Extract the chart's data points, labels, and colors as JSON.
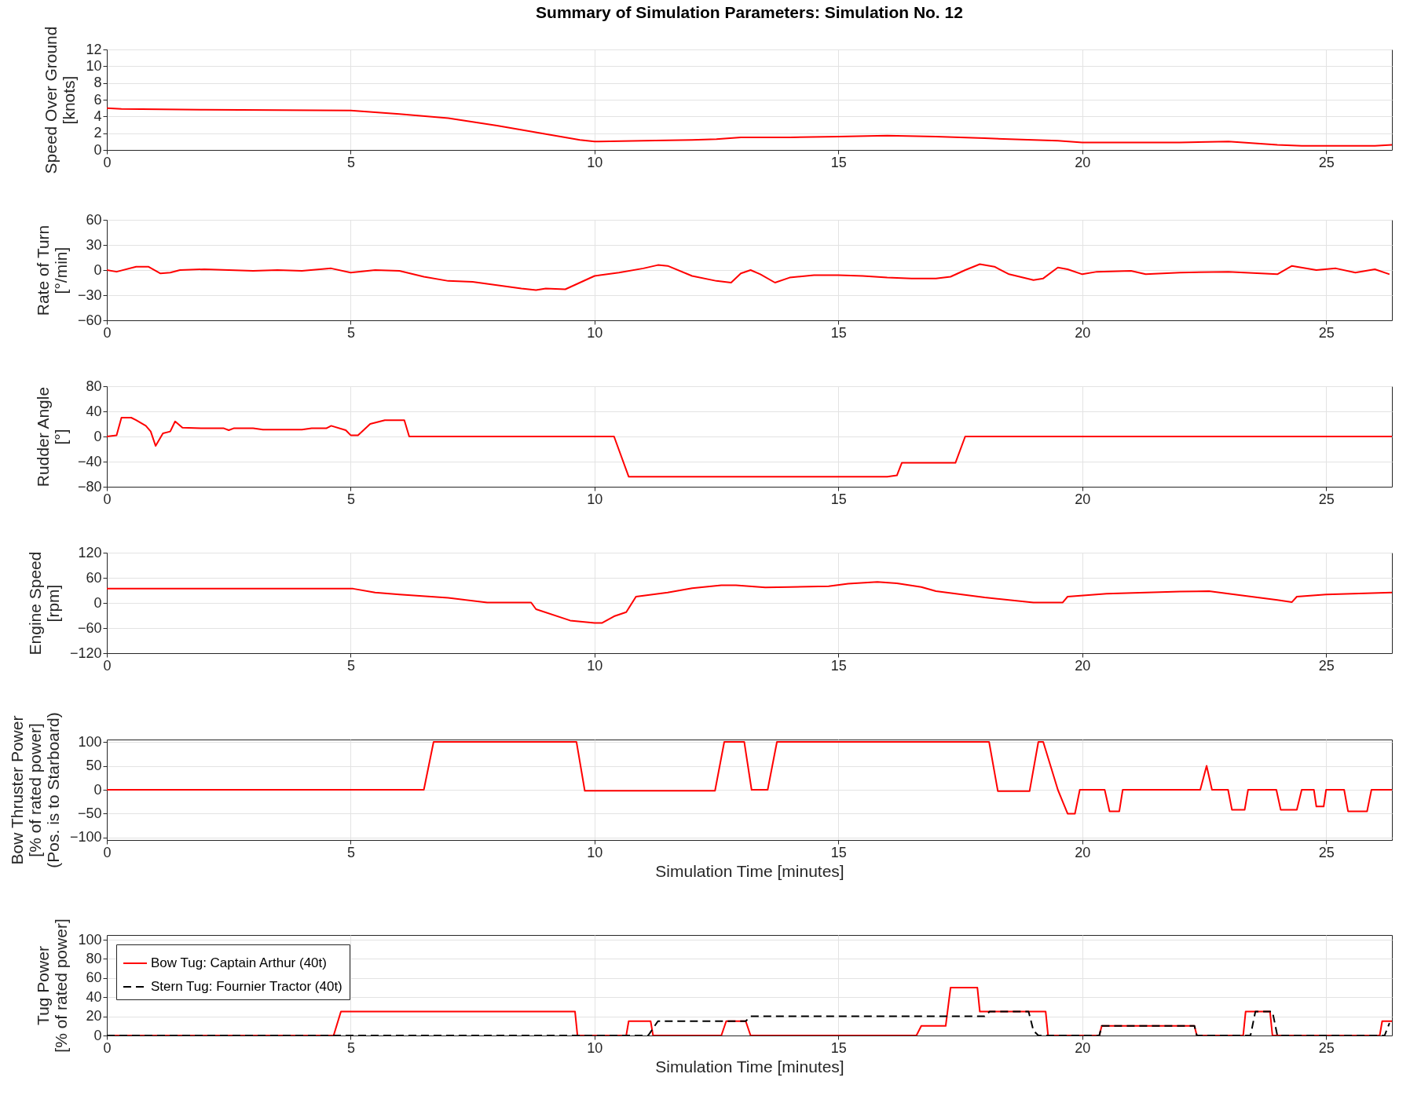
{
  "chart_data": [
    {
      "type": "line",
      "title": "Summary of Simulation Parameters: Simulation No. 12",
      "ylabel": "Speed Over Ground\n[knots]",
      "xlim": [
        0,
        26.35
      ],
      "xticks": [
        0,
        5,
        10,
        15,
        20,
        25
      ],
      "ylim": [
        0,
        12
      ],
      "yticks": [
        0,
        2,
        4,
        6,
        8,
        10,
        12
      ],
      "grid": true,
      "series": [
        {
          "color": "#ff0000",
          "x": [
            0,
            0.3,
            2,
            5,
            6,
            7,
            8,
            9,
            9.7,
            10,
            11,
            12,
            12.5,
            13,
            14,
            15,
            16,
            17,
            18,
            19,
            19.5,
            20,
            22,
            23,
            24,
            24.5,
            26,
            26.35
          ],
          "values": [
            5,
            4.9,
            4.8,
            4.7,
            4.3,
            3.8,
            2.9,
            1.9,
            1.2,
            1.0,
            1.1,
            1.2,
            1.3,
            1.5,
            1.5,
            1.6,
            1.7,
            1.6,
            1.4,
            1.2,
            1.1,
            0.9,
            0.9,
            1.0,
            0.6,
            0.5,
            0.5,
            0.6
          ]
        }
      ]
    },
    {
      "type": "line",
      "ylabel": "Rate of Turn\n[°/min]",
      "xlim": [
        0,
        26.35
      ],
      "xticks": [
        0,
        5,
        10,
        15,
        20,
        25
      ],
      "ylim": [
        -60,
        60
      ],
      "yticks": [
        -60,
        -30,
        0,
        30,
        60
      ],
      "grid": true,
      "series": [
        {
          "color": "#ff0000",
          "x": [
            0,
            0.2,
            0.6,
            0.85,
            1.1,
            1.3,
            1.5,
            2,
            3,
            3.5,
            4,
            4.6,
            5,
            5.5,
            6,
            6.5,
            7,
            7.5,
            8,
            8.5,
            8.8,
            9,
            9.4,
            10,
            10.5,
            11,
            11.3,
            11.5,
            12,
            12.5,
            12.8,
            13,
            13.2,
            13.4,
            13.7,
            14,
            14.5,
            15,
            15.5,
            16,
            16.5,
            17,
            17.3,
            17.6,
            17.9,
            18.2,
            18.5,
            19,
            19.2,
            19.5,
            19.7,
            20,
            20.3,
            21,
            21.3,
            22,
            23,
            24,
            24.3,
            24.8,
            25.2,
            25.6,
            26,
            26.3
          ],
          "values": [
            0,
            -2,
            4,
            4,
            -4,
            -3,
            0,
            1,
            -1,
            0,
            -1,
            2,
            -3,
            0,
            -1,
            -8,
            -13,
            -14,
            -18,
            -22,
            -24,
            -22,
            -23,
            -7,
            -3,
            2,
            6,
            5,
            -7,
            -13,
            -15,
            -4,
            0,
            -5,
            -15,
            -9,
            -6,
            -6,
            -7,
            -9,
            -10,
            -10,
            -8,
            0,
            7,
            4,
            -5,
            -12,
            -10,
            3,
            1,
            -5,
            -2,
            -1,
            -5,
            -3,
            -2,
            -5,
            5,
            0,
            2,
            -3,
            1,
            -5
          ]
        }
      ]
    },
    {
      "type": "line",
      "ylabel": "Rudder Angle\n[°]",
      "xlim": [
        0,
        26.35
      ],
      "xticks": [
        0,
        5,
        10,
        15,
        20,
        25
      ],
      "ylim": [
        -80,
        80
      ],
      "yticks": [
        -80,
        -40,
        0,
        40,
        80
      ],
      "grid": true,
      "series": [
        {
          "color": "#ff0000",
          "x": [
            0,
            0.2,
            0.3,
            0.5,
            0.6,
            0.8,
            0.9,
            1.0,
            1.15,
            1.3,
            1.4,
            1.55,
            2,
            2.4,
            2.5,
            2.6,
            3,
            3.2,
            4,
            4.2,
            4.5,
            4.6,
            4.9,
            5.0,
            5.15,
            5.4,
            5.7,
            6.1,
            6.2,
            10.4,
            10.7,
            16,
            16.2,
            16.3,
            17.4,
            17.6,
            26.35
          ],
          "values": [
            0,
            2,
            30,
            30,
            26,
            17,
            8,
            -15,
            5,
            8,
            24,
            14,
            13,
            13,
            10,
            13,
            13,
            11,
            11,
            13,
            13,
            17,
            10,
            2,
            2,
            20,
            26,
            26,
            0,
            0,
            -64,
            -64,
            -62,
            -42,
            -42,
            0,
            0
          ]
        }
      ]
    },
    {
      "type": "line",
      "ylabel": "Engine Speed\n[rpm]",
      "xlim": [
        0,
        26.35
      ],
      "xticks": [
        0,
        5,
        10,
        15,
        20,
        25
      ],
      "ylim": [
        -120,
        120
      ],
      "yticks": [
        -120,
        -60,
        0,
        60,
        120
      ],
      "grid": true,
      "series": [
        {
          "color": "#ff0000",
          "x": [
            0,
            5.05,
            5.5,
            6,
            7,
            7.8,
            8.7,
            8.8,
            9.5,
            10,
            10.15,
            10.4,
            10.65,
            10.85,
            11.5,
            12,
            12.6,
            12.9,
            13.5,
            14,
            14.8,
            15.2,
            15.8,
            16.2,
            16.7,
            17,
            18,
            19,
            19.6,
            19.7,
            20.5,
            22,
            22.6,
            23,
            24,
            24.3,
            24.4,
            25,
            26.35
          ],
          "values": [
            34,
            34,
            25,
            20,
            12,
            1,
            1,
            -15,
            -42,
            -48,
            -48,
            -32,
            -22,
            15,
            25,
            35,
            42,
            42,
            37,
            38,
            40,
            46,
            50,
            47,
            38,
            28,
            13,
            1,
            1,
            15,
            22,
            27,
            28,
            22,
            7,
            2,
            15,
            20,
            25
          ]
        }
      ]
    },
    {
      "type": "line",
      "xlabel": "Simulation Time [minutes]",
      "ylabel": "Bow Thruster Power\n[% of rated power]\n(Pos. is to Starboard)",
      "xlim": [
        0,
        26.35
      ],
      "xticks": [
        0,
        5,
        10,
        15,
        20,
        25
      ],
      "ylim": [
        -105,
        105
      ],
      "yticks": [
        -100,
        -50,
        0,
        50,
        100
      ],
      "grid": true,
      "series": [
        {
          "color": "#ff0000",
          "x": [
            0,
            6.5,
            6.7,
            9.63,
            9.8,
            12.47,
            12.66,
            13.07,
            13.22,
            13.55,
            13.74,
            18.09,
            18.27,
            18.92,
            19.1,
            19.2,
            19.5,
            19.7,
            19.85,
            19.95,
            20.46,
            20.56,
            20.76,
            20.83,
            22.42,
            22.55,
            22.66,
            22.99,
            23.07,
            23.33,
            23.4,
            23.98,
            24.07,
            24.4,
            24.5,
            24.75,
            24.8,
            24.95,
            25.0,
            25.37,
            25.45,
            25.84,
            25.93,
            26.35
          ],
          "values": [
            0,
            0,
            100,
            100,
            -2,
            -2,
            100,
            100,
            0,
            0,
            100,
            100,
            -3,
            -3,
            100,
            100,
            0,
            -50,
            -50,
            0,
            0,
            -45,
            -45,
            0,
            0,
            50,
            0,
            0,
            -42,
            -42,
            0,
            0,
            -42,
            -42,
            0,
            0,
            -35,
            -35,
            0,
            0,
            -45,
            -45,
            0,
            0
          ]
        }
      ]
    },
    {
      "type": "line",
      "xlabel": "Simulation Time [minutes]",
      "ylabel": "Tug Power\n[% of rated power]",
      "xlim": [
        0,
        26.35
      ],
      "xticks": [
        0,
        5,
        10,
        15,
        20,
        25
      ],
      "ylim": [
        0,
        105
      ],
      "yticks": [
        0,
        20,
        40,
        60,
        80,
        100
      ],
      "grid": true,
      "legend": "top left",
      "series": [
        {
          "name": "Bow Tug: Captain Arthur (40t)",
          "color": "#ff0000",
          "line_style": "solid",
          "x": [
            0,
            4.65,
            4.8,
            9.6,
            9.65,
            10.65,
            10.7,
            11.15,
            11.2,
            12.6,
            12.7,
            13.1,
            13.2,
            16.6,
            16.7,
            17.2,
            17.3,
            17.85,
            17.9,
            19.25,
            19.3,
            20.35,
            20.4,
            22.3,
            22.35,
            23.3,
            23.35,
            23.85,
            23.9,
            26.1,
            26.15,
            26.35
          ],
          "values": [
            0,
            0,
            25,
            25,
            0,
            0,
            15,
            15,
            0,
            0,
            15,
            15,
            0,
            0,
            10,
            10,
            50,
            50,
            25,
            25,
            0,
            0,
            10,
            10,
            0,
            0,
            25,
            25,
            0,
            0,
            15,
            15
          ]
        },
        {
          "name": "Stern Tug: Fournier Tractor (40t)",
          "color": "#000000",
          "line_style": "dashed",
          "x": [
            0,
            11.1,
            11.3,
            13.1,
            13.2,
            18.0,
            18.1,
            18.9,
            19.0,
            19.1,
            20.35,
            20.4,
            22.3,
            22.35,
            23.45,
            23.55,
            23.9,
            24.0,
            26.2,
            26.3
          ],
          "values": [
            0,
            0,
            15,
            15,
            20,
            20,
            25,
            25,
            5,
            0,
            0,
            10,
            10,
            0,
            0,
            25,
            25,
            0,
            0,
            13
          ]
        }
      ]
    }
  ]
}
